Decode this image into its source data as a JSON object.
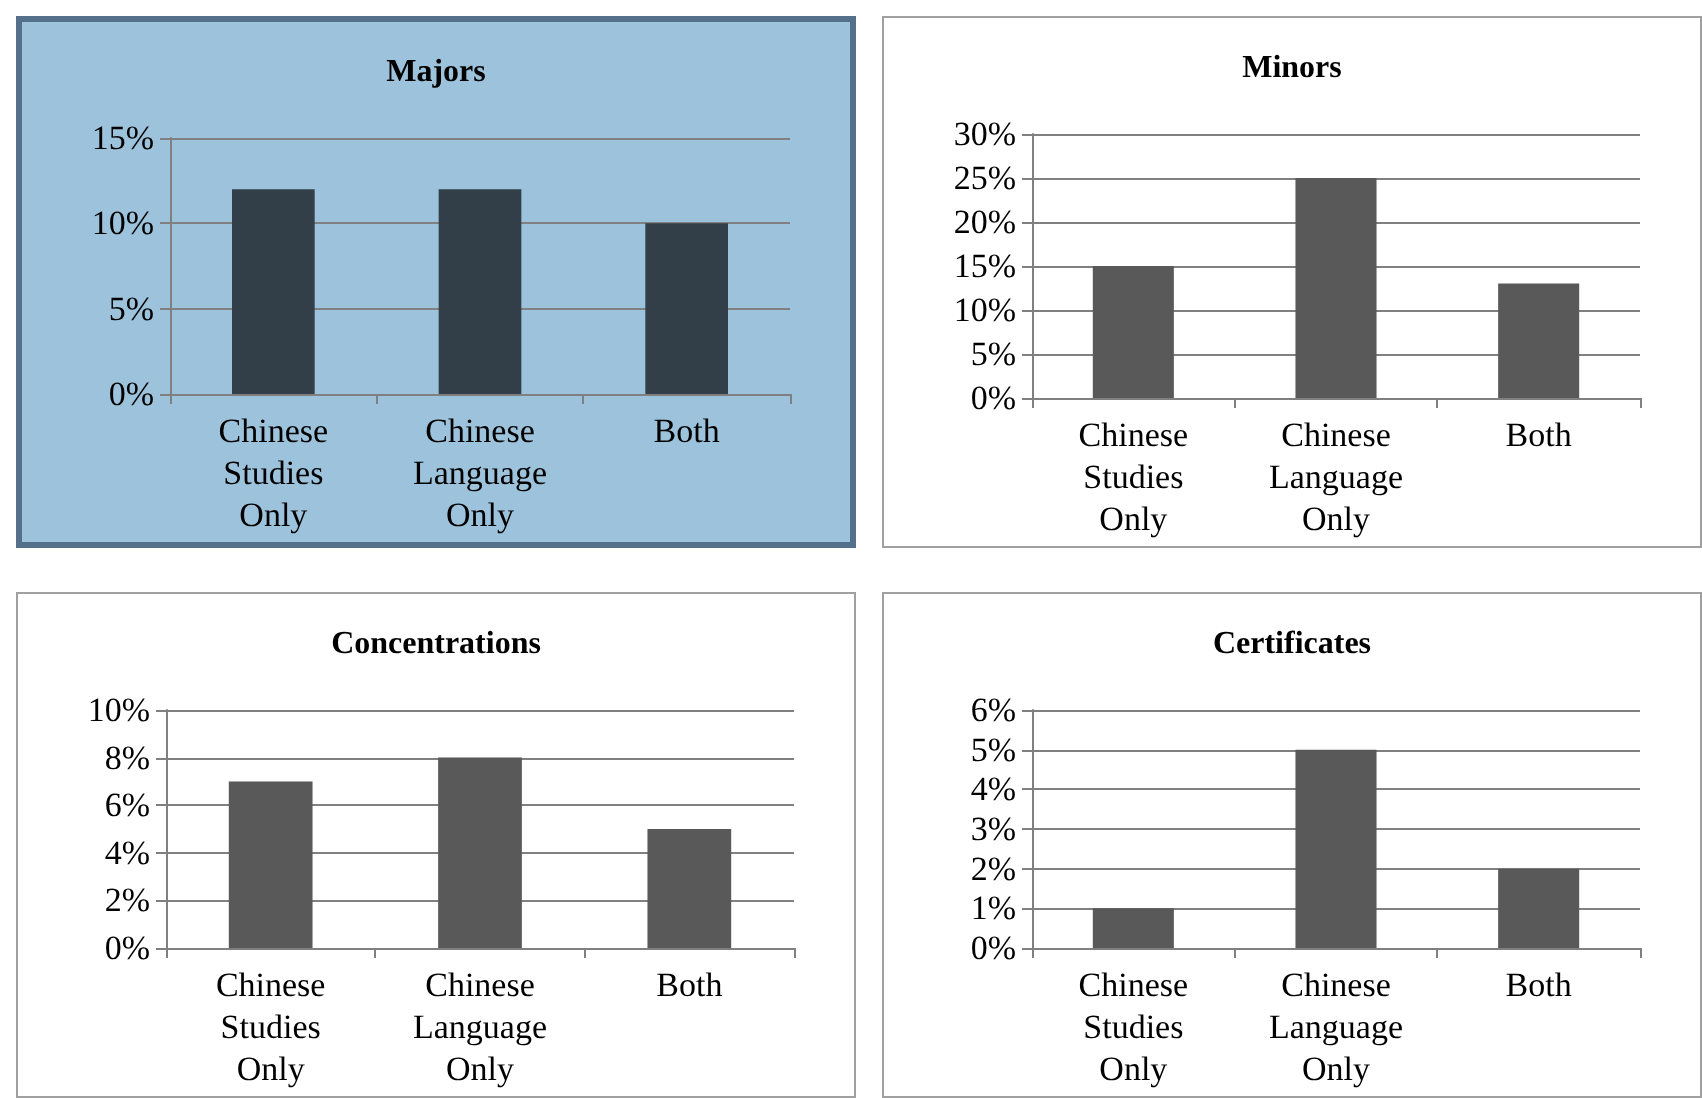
{
  "chart_data": [
    {
      "type": "bar",
      "title": "Majors",
      "categories": [
        "Chinese Studies Only",
        "Chinese Language Only",
        "Both"
      ],
      "values": [
        12,
        12,
        10
      ],
      "color": "#333f48",
      "ylim": [
        0,
        15
      ],
      "yticks": [
        {
          "value": 0,
          "label": "0%"
        },
        {
          "value": 5,
          "label": "5%"
        },
        {
          "value": 10,
          "label": "10%"
        },
        {
          "value": 15,
          "label": "15%"
        }
      ],
      "grid": "y"
    },
    {
      "type": "bar",
      "title": "Minors",
      "categories": [
        "Chinese Studies Only",
        "Chinese Language Only",
        "Both"
      ],
      "values": [
        15,
        25,
        13
      ],
      "color": "#595959",
      "ylim": [
        0,
        30
      ],
      "yticks": [
        {
          "value": 0,
          "label": "0%"
        },
        {
          "value": 5,
          "label": "5%"
        },
        {
          "value": 10,
          "label": "10%"
        },
        {
          "value": 15,
          "label": "15%"
        },
        {
          "value": 20,
          "label": "20%"
        },
        {
          "value": 25,
          "label": "25%"
        },
        {
          "value": 30,
          "label": "30%"
        }
      ],
      "grid": "y"
    },
    {
      "type": "bar",
      "title": "Concentrations",
      "categories": [
        "Chinese Studies Only",
        "Chinese Language Only",
        "Both"
      ],
      "values": [
        7,
        8,
        5
      ],
      "color": "#595959",
      "ylim": [
        0,
        10
      ],
      "yticks": [
        {
          "value": 0,
          "label": "0%"
        },
        {
          "value": 2,
          "label": "2%"
        },
        {
          "value": 4,
          "label": "4%"
        },
        {
          "value": 6,
          "label": "6%"
        },
        {
          "value": 8,
          "label": "8%"
        },
        {
          "value": 10,
          "label": "10%"
        }
      ],
      "grid": "y"
    },
    {
      "type": "bar",
      "title": "Certificates",
      "categories": [
        "Chinese Studies Only",
        "Chinese Language Only",
        "Both"
      ],
      "values": [
        1,
        5,
        2
      ],
      "color": "#595959",
      "ylim": [
        0,
        6
      ],
      "yticks": [
        {
          "value": 0,
          "label": "0%"
        },
        {
          "value": 1,
          "label": "1%"
        },
        {
          "value": 2,
          "label": "2%"
        },
        {
          "value": 3,
          "label": "3%"
        },
        {
          "value": 4,
          "label": "4%"
        },
        {
          "value": 5,
          "label": "5%"
        },
        {
          "value": 6,
          "label": "6%"
        }
      ],
      "grid": "y"
    }
  ]
}
